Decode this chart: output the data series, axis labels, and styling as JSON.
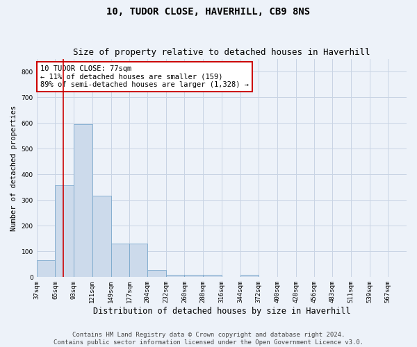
{
  "title": "10, TUDOR CLOSE, HAVERHILL, CB9 8NS",
  "subtitle": "Size of property relative to detached houses in Haverhill",
  "xlabel": "Distribution of detached houses by size in Haverhill",
  "ylabel": "Number of detached properties",
  "footer_line1": "Contains HM Land Registry data © Crown copyright and database right 2024.",
  "footer_line2": "Contains public sector information licensed under the Open Government Licence v3.0.",
  "bins": [
    37,
    65,
    93,
    121,
    149,
    177,
    204,
    232,
    260,
    288,
    316,
    344,
    372,
    400,
    428,
    456,
    483,
    511,
    539,
    567,
    595
  ],
  "bar_heights": [
    65,
    357,
    595,
    317,
    130,
    130,
    27,
    10,
    10,
    10,
    0,
    10,
    0,
    0,
    0,
    0,
    0,
    0,
    0,
    0
  ],
  "bar_color": "#ccdaeb",
  "bar_edge_color": "#7aa8cc",
  "vline_x": 77,
  "vline_color": "#cc0000",
  "annotation_text": "10 TUDOR CLOSE: 77sqm\n← 11% of detached houses are smaller (159)\n89% of semi-detached houses are larger (1,328) →",
  "annotation_box_facecolor": "#ffffff",
  "annotation_box_edgecolor": "#cc0000",
  "ylim": [
    0,
    850
  ],
  "yticks": [
    0,
    100,
    200,
    300,
    400,
    500,
    600,
    700,
    800
  ],
  "grid_color": "#c8d4e4",
  "bg_color": "#edf2f9",
  "plot_bg_color": "#edf2f9",
  "title_fontsize": 10,
  "subtitle_fontsize": 9,
  "xlabel_fontsize": 8.5,
  "ylabel_fontsize": 7.5,
  "tick_fontsize": 6.5,
  "footer_fontsize": 6.5,
  "annotation_fontsize": 7.5
}
